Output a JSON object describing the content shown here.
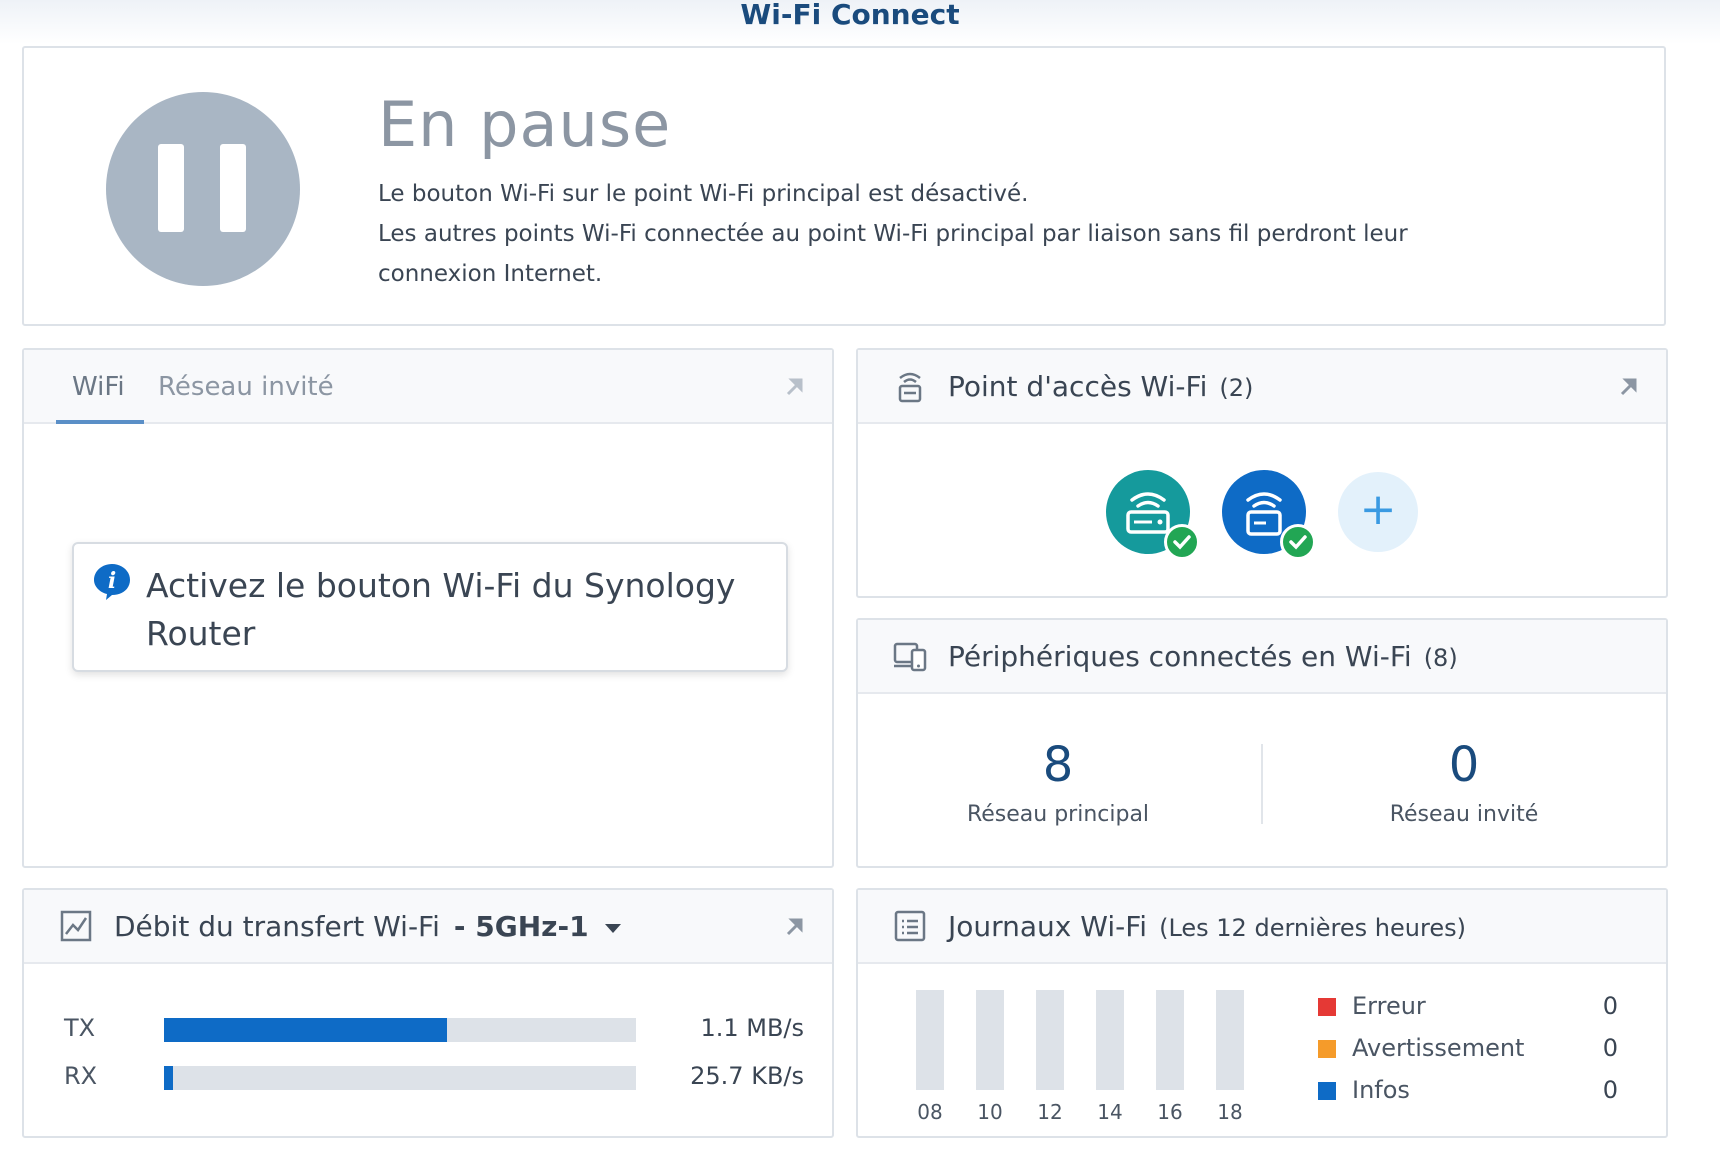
{
  "app": {
    "title": "Wi-Fi Connect"
  },
  "status": {
    "title": "En pause",
    "line1": "Le bouton Wi-Fi sur le point Wi-Fi principal est désactivé.",
    "line2": "Les autres points Wi-Fi connectée au point Wi-Fi principal par liaison sans fil perdront leur connexion Internet."
  },
  "wifi_panel": {
    "tabs": [
      {
        "label": "WiFi"
      },
      {
        "label": "Réseau invité"
      }
    ],
    "notice": "Activez le bouton Wi-Fi du Synology Router"
  },
  "access_points": {
    "title": "Point d'accès Wi-Fi",
    "count": "(2)",
    "nodes": [
      {
        "color": "#159a9c"
      },
      {
        "color": "#0e6bc6"
      }
    ],
    "add_label": "+"
  },
  "devices": {
    "title": "Périphériques connectés en Wi-Fi",
    "count": "(8)",
    "main_count": "8",
    "main_label": "Réseau principal",
    "guest_count": "0",
    "guest_label": "Réseau invité"
  },
  "throughput": {
    "title": "Débit du transfert Wi-Fi",
    "band": "- 5GHz-1",
    "tx": {
      "label": "TX",
      "value": "1.1 MB/s",
      "fraction": 0.6
    },
    "rx": {
      "label": "RX",
      "value": "25.7 KB/s",
      "fraction": 0.02
    },
    "fill_color": "#0e6bc6"
  },
  "logs": {
    "title": "Journaux Wi-Fi",
    "subtitle": "(Les 12 dernières heures)",
    "ticks": [
      "08",
      "10",
      "12",
      "14",
      "16",
      "18"
    ],
    "legend": [
      {
        "label": "Erreur",
        "value": "0",
        "color": "#e53935"
      },
      {
        "label": "Avertissement",
        "value": "0",
        "color": "#f59b2a"
      },
      {
        "label": "Infos",
        "value": "0",
        "color": "#0e6bc6"
      }
    ]
  }
}
